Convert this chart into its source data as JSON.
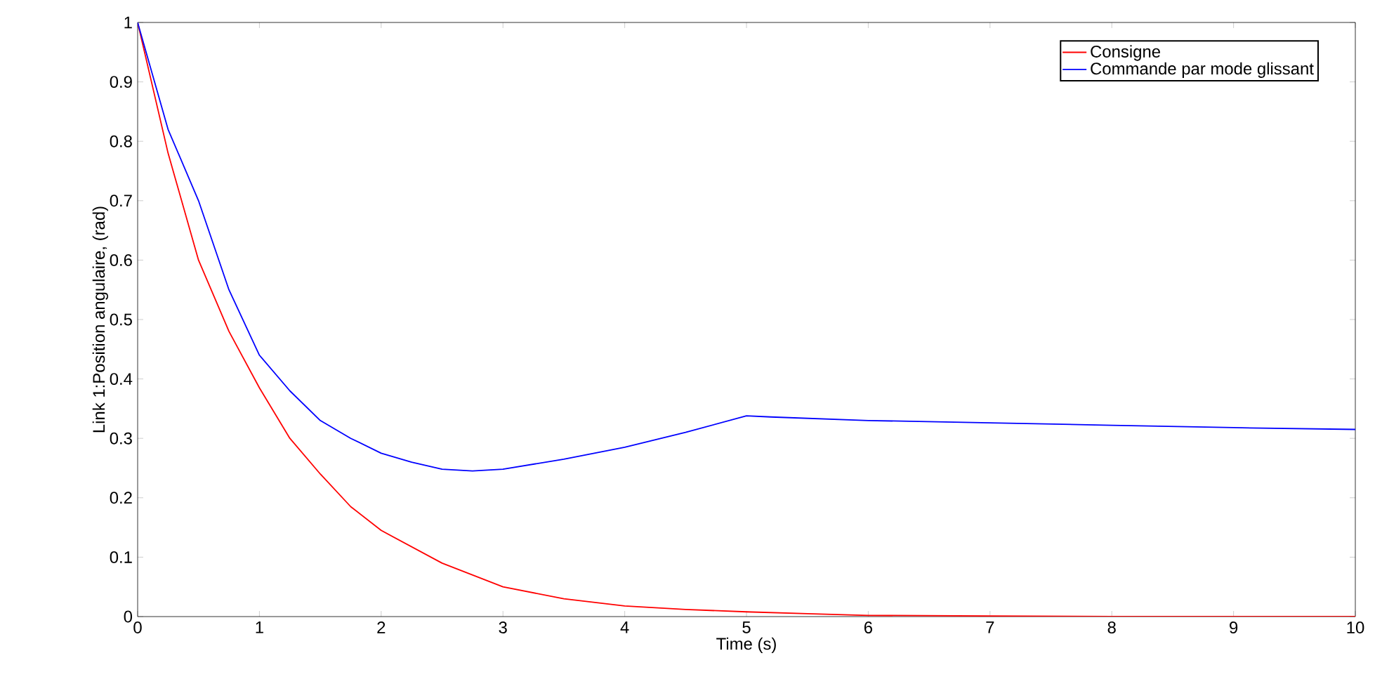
{
  "chart_data": {
    "type": "line",
    "xlabel": "Time (s)",
    "ylabel": "Link 1:Position angulaire, (rad)",
    "xlim": [
      0,
      10
    ],
    "ylim": [
      0,
      1
    ],
    "xticks": [
      0,
      1,
      2,
      3,
      4,
      5,
      6,
      7,
      8,
      9,
      10
    ],
    "yticks": [
      0,
      0.1,
      0.2,
      0.3,
      0.4,
      0.5,
      0.6,
      0.7,
      0.8,
      0.9,
      1
    ],
    "grid": false,
    "legend": "top right",
    "marker": "none",
    "line_style": "solid",
    "series": [
      {
        "name": "Consigne",
        "color": "#ff0000",
        "x": [
          0,
          0.25,
          0.5,
          0.75,
          1,
          1.25,
          1.5,
          1.75,
          2,
          2.5,
          3,
          3.5,
          4,
          4.5,
          5,
          5.5,
          6,
          7,
          8,
          9,
          10
        ],
        "values": [
          1,
          0.78,
          0.6,
          0.48,
          0.385,
          0.3,
          0.24,
          0.185,
          0.145,
          0.09,
          0.05,
          0.03,
          0.018,
          0.012,
          0.008,
          0.005,
          0.002,
          0.001,
          0,
          0,
          0
        ]
      },
      {
        "name": "Commande par mode glissant",
        "color": "#0000ff",
        "x": [
          0,
          0.25,
          0.5,
          0.75,
          1,
          1.25,
          1.5,
          1.75,
          2,
          2.25,
          2.5,
          2.75,
          3,
          3.5,
          4,
          4.5,
          5,
          5.2,
          6,
          7,
          8,
          9,
          10
        ],
        "values": [
          1,
          0.82,
          0.7,
          0.55,
          0.44,
          0.38,
          0.33,
          0.3,
          0.275,
          0.26,
          0.248,
          0.245,
          0.248,
          0.265,
          0.285,
          0.31,
          0.338,
          0.336,
          0.33,
          0.326,
          0.322,
          0.318,
          0.315
        ]
      }
    ]
  }
}
